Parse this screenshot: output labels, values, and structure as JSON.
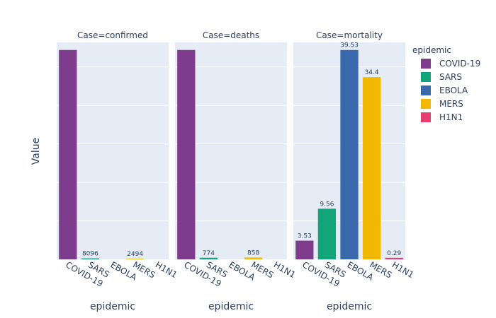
{
  "chart_data": {
    "type": "bar",
    "ylabel": "Value",
    "xlabel": "epidemic",
    "categories": [
      "COVID-19",
      "SARS",
      "EBOLA",
      "MERS",
      "H1N1"
    ],
    "legend": {
      "title": "epidemic",
      "placement": "right",
      "items": [
        {
          "name": "COVID-19",
          "color": "#7F3C8D"
        },
        {
          "name": "SARS",
          "color": "#11A579"
        },
        {
          "name": "EBOLA",
          "color": "#3969AC"
        },
        {
          "name": "MERS",
          "color": "#F2B701"
        },
        {
          "name": "H1N1",
          "color": "#E73F74"
        }
      ]
    },
    "panels": [
      {
        "title": "Case=confirmed",
        "values": [
          1700000,
          8096,
          null,
          2494,
          null
        ],
        "labels": [
          "",
          "8096",
          "",
          "2494",
          ""
        ]
      },
      {
        "title": "Case=deaths",
        "values": [
          102000,
          774,
          null,
          858,
          null
        ],
        "labels": [
          "",
          "774",
          "",
          "858",
          ""
        ]
      },
      {
        "title": "Case=mortality",
        "values": [
          3.53,
          9.56,
          39.53,
          34.4,
          0.29
        ],
        "labels": [
          "3.53",
          "9.56",
          "39.53",
          "34.4",
          "0.29"
        ]
      }
    ],
    "grid": true
  }
}
